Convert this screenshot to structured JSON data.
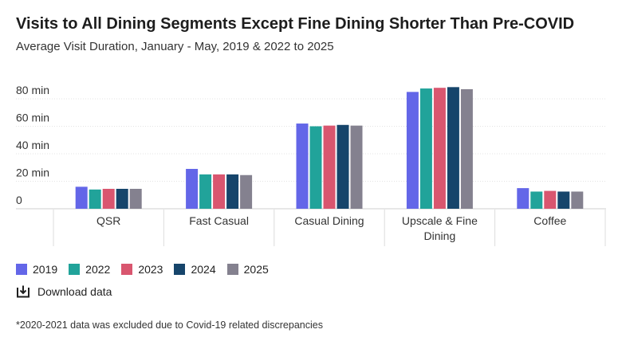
{
  "header": {
    "title": "Visits to All Dining Segments Except Fine Dining Shorter Than Pre-COVID",
    "subtitle": "Average Visit Duration, January - May, 2019 & 2022 to 2025"
  },
  "chart_data": {
    "type": "bar",
    "categories": [
      "QSR",
      "Fast Casual",
      "Casual Dining",
      "Upscale & Fine Dining",
      "Coffee"
    ],
    "series": [
      {
        "name": "2019",
        "color": "#6366e8",
        "values": [
          16,
          29,
          62,
          85,
          15
        ]
      },
      {
        "name": "2022",
        "color": "#21a39a",
        "values": [
          14,
          25,
          60,
          87.5,
          12.5
        ]
      },
      {
        "name": "2023",
        "color": "#d9566f",
        "values": [
          14.5,
          25,
          60.5,
          88,
          13
        ]
      },
      {
        "name": "2024",
        "color": "#16456b",
        "values": [
          14.5,
          25,
          61,
          88.5,
          12.5
        ]
      },
      {
        "name": "2025",
        "color": "#84818f",
        "values": [
          14.5,
          24.5,
          60.5,
          87,
          12.5
        ]
      }
    ],
    "y_ticks": [
      {
        "value": 0,
        "label": "0"
      },
      {
        "value": 20,
        "label": "20 min"
      },
      {
        "value": 40,
        "label": "40 min"
      },
      {
        "value": 60,
        "label": "60 min"
      },
      {
        "value": 80,
        "label": "80 min"
      }
    ],
    "ylim": [
      0,
      90
    ],
    "grid": true,
    "legend_position": "bottom-left"
  },
  "download": {
    "label": "Download data",
    "icon": "download-icon"
  },
  "footnote": "*2020-2021 data was excluded due to Covid-19 related discrepancies"
}
